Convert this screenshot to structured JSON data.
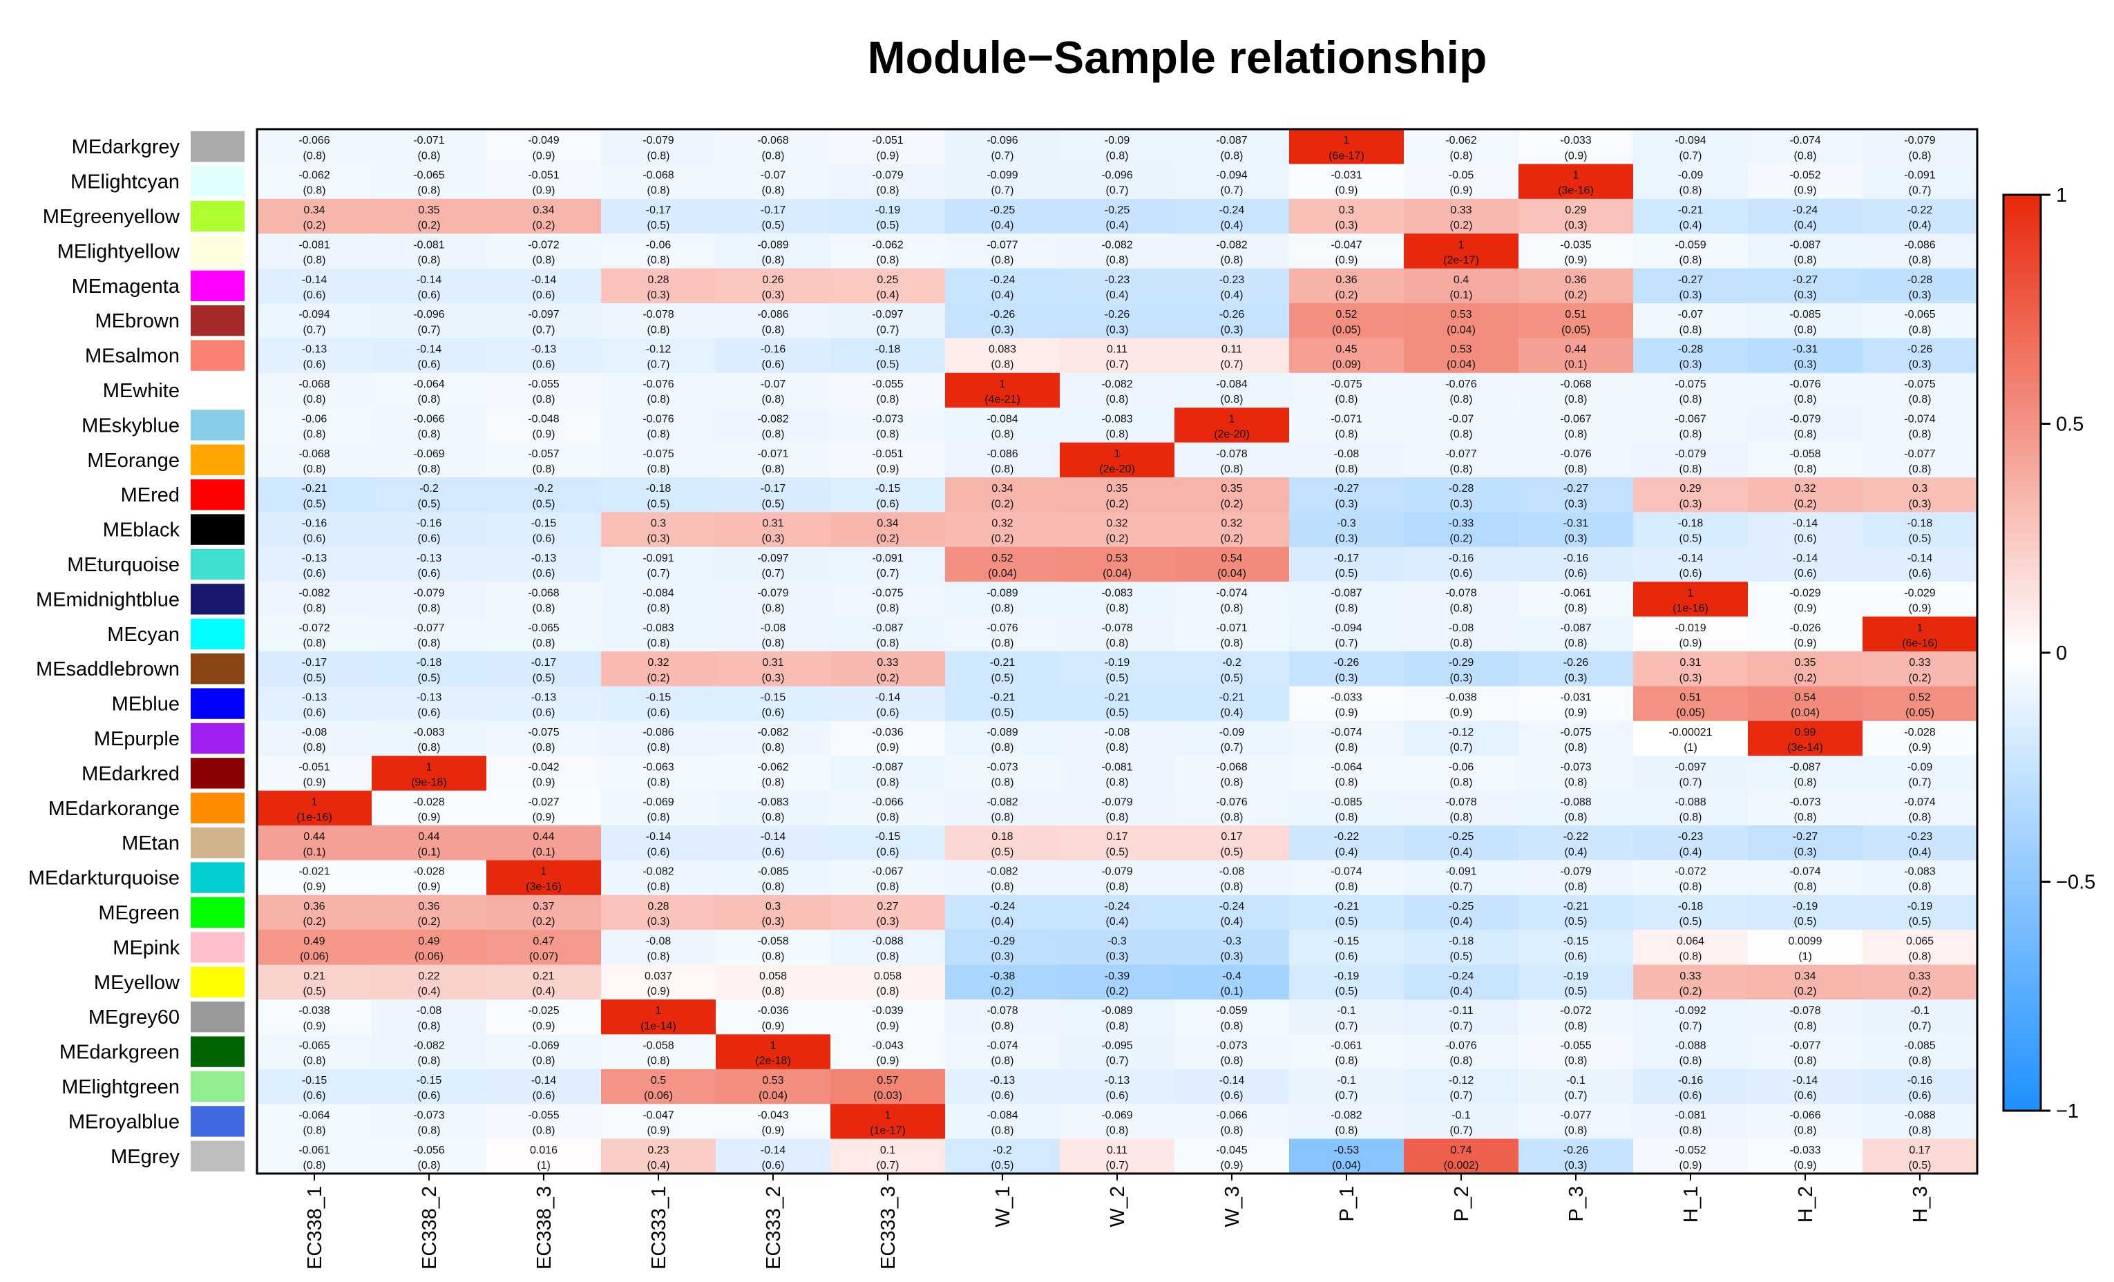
{
  "chart_data": {
    "type": "heatmap",
    "title": "Module−Sample relationship",
    "columns": [
      "EC338_1",
      "EC338_2",
      "EC338_3",
      "EC333_1",
      "EC333_2",
      "EC333_3",
      "W_1",
      "W_2",
      "W_3",
      "P_1",
      "P_2",
      "P_3",
      "H_1",
      "H_2",
      "H_3"
    ],
    "rows": [
      "MEdarkgrey",
      "MElightcyan",
      "MEgreenyellow",
      "MElightyellow",
      "MEmagenta",
      "MEbrown",
      "MEsalmon",
      "MEwhite",
      "MEskyblue",
      "MEorange",
      "MEred",
      "MEblack",
      "MEturquoise",
      "MEmidnightblue",
      "MEcyan",
      "MEsaddlebrown",
      "MEblue",
      "MEpurple",
      "MEdarkred",
      "MEdarkorange",
      "MEtan",
      "MEdarkturquoise",
      "MEgreen",
      "MEpink",
      "MEyellow",
      "MEgrey60",
      "MEdarkgreen",
      "MElightgreen",
      "MEroyalblue",
      "MEgrey"
    ],
    "row_colors": [
      "#a9a9a9",
      "#e0ffff",
      "#adff2f",
      "#ffffe0",
      "#ff00ff",
      "#a52a2a",
      "#fa8072",
      "#ffffff",
      "#87ceeb",
      "#ffa500",
      "#ff0000",
      "#000000",
      "#40e0d0",
      "#191970",
      "#00ffff",
      "#8b4513",
      "#0000ff",
      "#a020f0",
      "#8b0000",
      "#ff8c00",
      "#d2b48c",
      "#00ced1",
      "#00ff00",
      "#ffc0cb",
      "#ffff00",
      "#999999",
      "#006400",
      "#90ee90",
      "#4169e1",
      "#bebebe"
    ],
    "values": [
      [
        "-0.066",
        "-0.071",
        "-0.049",
        "-0.079",
        "-0.068",
        "-0.051",
        "-0.096",
        "-0.09",
        "-0.087",
        "1",
        "-0.062",
        "-0.033",
        "-0.094",
        "-0.074",
        "-0.079"
      ],
      [
        "-0.062",
        "-0.065",
        "-0.051",
        "-0.068",
        "-0.07",
        "-0.079",
        "-0.099",
        "-0.096",
        "-0.094",
        "-0.031",
        "-0.05",
        "1",
        "-0.09",
        "-0.052",
        "-0.091"
      ],
      [
        "0.34",
        "0.35",
        "0.34",
        "-0.17",
        "-0.17",
        "-0.19",
        "-0.25",
        "-0.25",
        "-0.24",
        "0.3",
        "0.33",
        "0.29",
        "-0.21",
        "-0.24",
        "-0.22"
      ],
      [
        "-0.081",
        "-0.081",
        "-0.072",
        "-0.06",
        "-0.089",
        "-0.062",
        "-0.077",
        "-0.082",
        "-0.082",
        "-0.047",
        "1",
        "-0.035",
        "-0.059",
        "-0.087",
        "-0.086"
      ],
      [
        "-0.14",
        "-0.14",
        "-0.14",
        "0.28",
        "0.26",
        "0.25",
        "-0.24",
        "-0.23",
        "-0.23",
        "0.36",
        "0.4",
        "0.36",
        "-0.27",
        "-0.27",
        "-0.28"
      ],
      [
        "-0.094",
        "-0.096",
        "-0.097",
        "-0.078",
        "-0.086",
        "-0.097",
        "-0.26",
        "-0.26",
        "-0.26",
        "0.52",
        "0.53",
        "0.51",
        "-0.07",
        "-0.085",
        "-0.065"
      ],
      [
        "-0.13",
        "-0.14",
        "-0.13",
        "-0.12",
        "-0.16",
        "-0.18",
        "0.083",
        "0.11",
        "0.11",
        "0.45",
        "0.53",
        "0.44",
        "-0.28",
        "-0.31",
        "-0.26"
      ],
      [
        "-0.068",
        "-0.064",
        "-0.055",
        "-0.076",
        "-0.07",
        "-0.055",
        "1",
        "-0.082",
        "-0.084",
        "-0.075",
        "-0.076",
        "-0.068",
        "-0.075",
        "-0.076",
        "-0.075"
      ],
      [
        "-0.06",
        "-0.066",
        "-0.048",
        "-0.076",
        "-0.082",
        "-0.073",
        "-0.084",
        "-0.083",
        "1",
        "-0.071",
        "-0.07",
        "-0.067",
        "-0.067",
        "-0.079",
        "-0.074"
      ],
      [
        "-0.068",
        "-0.069",
        "-0.057",
        "-0.075",
        "-0.071",
        "-0.051",
        "-0.086",
        "1",
        "-0.078",
        "-0.08",
        "-0.077",
        "-0.076",
        "-0.079",
        "-0.058",
        "-0.077"
      ],
      [
        "-0.21",
        "-0.2",
        "-0.2",
        "-0.18",
        "-0.17",
        "-0.15",
        "0.34",
        "0.35",
        "0.35",
        "-0.27",
        "-0.28",
        "-0.27",
        "0.29",
        "0.32",
        "0.3"
      ],
      [
        "-0.16",
        "-0.16",
        "-0.15",
        "0.3",
        "0.31",
        "0.34",
        "0.32",
        "0.32",
        "0.32",
        "-0.3",
        "-0.33",
        "-0.31",
        "-0.18",
        "-0.14",
        "-0.18"
      ],
      [
        "-0.13",
        "-0.13",
        "-0.13",
        "-0.091",
        "-0.097",
        "-0.091",
        "0.52",
        "0.53",
        "0.54",
        "-0.17",
        "-0.16",
        "-0.16",
        "-0.14",
        "-0.14",
        "-0.14"
      ],
      [
        "-0.082",
        "-0.079",
        "-0.068",
        "-0.084",
        "-0.079",
        "-0.075",
        "-0.089",
        "-0.083",
        "-0.074",
        "-0.087",
        "-0.078",
        "-0.061",
        "1",
        "-0.029",
        "-0.029"
      ],
      [
        "-0.072",
        "-0.077",
        "-0.065",
        "-0.083",
        "-0.08",
        "-0.087",
        "-0.076",
        "-0.078",
        "-0.071",
        "-0.094",
        "-0.08",
        "-0.087",
        "-0.019",
        "-0.026",
        "1"
      ],
      [
        "-0.17",
        "-0.18",
        "-0.17",
        "0.32",
        "0.31",
        "0.33",
        "-0.21",
        "-0.19",
        "-0.2",
        "-0.26",
        "-0.29",
        "-0.26",
        "0.31",
        "0.35",
        "0.33"
      ],
      [
        "-0.13",
        "-0.13",
        "-0.13",
        "-0.15",
        "-0.15",
        "-0.14",
        "-0.21",
        "-0.21",
        "-0.21",
        "-0.033",
        "-0.038",
        "-0.031",
        "0.51",
        "0.54",
        "0.52"
      ],
      [
        "-0.08",
        "-0.083",
        "-0.075",
        "-0.086",
        "-0.082",
        "-0.036",
        "-0.089",
        "-0.08",
        "-0.09",
        "-0.074",
        "-0.12",
        "-0.075",
        "-0.00021",
        "0.99",
        "-0.028"
      ],
      [
        "-0.051",
        "1",
        "-0.042",
        "-0.063",
        "-0.062",
        "-0.087",
        "-0.073",
        "-0.081",
        "-0.068",
        "-0.064",
        "-0.06",
        "-0.073",
        "-0.097",
        "-0.087",
        "-0.09"
      ],
      [
        "1",
        "-0.028",
        "-0.027",
        "-0.069",
        "-0.083",
        "-0.066",
        "-0.082",
        "-0.079",
        "-0.076",
        "-0.085",
        "-0.078",
        "-0.088",
        "-0.088",
        "-0.073",
        "-0.074"
      ],
      [
        "0.44",
        "0.44",
        "0.44",
        "-0.14",
        "-0.14",
        "-0.15",
        "0.18",
        "0.17",
        "0.17",
        "-0.22",
        "-0.25",
        "-0.22",
        "-0.23",
        "-0.27",
        "-0.23"
      ],
      [
        "-0.021",
        "-0.028",
        "1",
        "-0.082",
        "-0.085",
        "-0.067",
        "-0.082",
        "-0.079",
        "-0.08",
        "-0.074",
        "-0.091",
        "-0.079",
        "-0.072",
        "-0.074",
        "-0.083"
      ],
      [
        "0.36",
        "0.36",
        "0.37",
        "0.28",
        "0.3",
        "0.27",
        "-0.24",
        "-0.24",
        "-0.24",
        "-0.21",
        "-0.25",
        "-0.21",
        "-0.18",
        "-0.19",
        "-0.19"
      ],
      [
        "0.49",
        "0.49",
        "0.47",
        "-0.08",
        "-0.058",
        "-0.088",
        "-0.29",
        "-0.3",
        "-0.3",
        "-0.15",
        "-0.18",
        "-0.15",
        "0.064",
        "0.0099",
        "0.065"
      ],
      [
        "0.21",
        "0.22",
        "0.21",
        "0.037",
        "0.058",
        "0.058",
        "-0.38",
        "-0.39",
        "-0.4",
        "-0.19",
        "-0.24",
        "-0.19",
        "0.33",
        "0.34",
        "0.33"
      ],
      [
        "-0.038",
        "-0.08",
        "-0.025",
        "1",
        "-0.036",
        "-0.039",
        "-0.078",
        "-0.089",
        "-0.059",
        "-0.1",
        "-0.11",
        "-0.072",
        "-0.092",
        "-0.078",
        "-0.1"
      ],
      [
        "-0.065",
        "-0.082",
        "-0.069",
        "-0.058",
        "1",
        "-0.043",
        "-0.074",
        "-0.095",
        "-0.073",
        "-0.061",
        "-0.076",
        "-0.055",
        "-0.088",
        "-0.077",
        "-0.085"
      ],
      [
        "-0.15",
        "-0.15",
        "-0.14",
        "0.5",
        "0.53",
        "0.57",
        "-0.13",
        "-0.13",
        "-0.14",
        "-0.1",
        "-0.12",
        "-0.1",
        "-0.16",
        "-0.14",
        "-0.16"
      ],
      [
        "-0.064",
        "-0.073",
        "-0.055",
        "-0.047",
        "-0.043",
        "1",
        "-0.084",
        "-0.069",
        "-0.066",
        "-0.082",
        "-0.1",
        "-0.077",
        "-0.081",
        "-0.066",
        "-0.088"
      ],
      [
        "-0.061",
        "-0.056",
        "0.016",
        "0.23",
        "-0.14",
        "0.1",
        "-0.2",
        "0.11",
        "-0.045",
        "-0.53",
        "0.74",
        "-0.26",
        "-0.052",
        "-0.033",
        "0.17"
      ]
    ],
    "pvalues": [
      [
        "(0.8)",
        "(0.8)",
        "(0.9)",
        "(0.8)",
        "(0.8)",
        "(0.9)",
        "(0.7)",
        "(0.8)",
        "(0.8)",
        "(6e-17)",
        "(0.8)",
        "(0.9)",
        "(0.7)",
        "(0.8)",
        "(0.8)"
      ],
      [
        "(0.8)",
        "(0.8)",
        "(0.9)",
        "(0.8)",
        "(0.8)",
        "(0.8)",
        "(0.7)",
        "(0.7)",
        "(0.7)",
        "(0.9)",
        "(0.9)",
        "(3e-16)",
        "(0.8)",
        "(0.9)",
        "(0.7)"
      ],
      [
        "(0.2)",
        "(0.2)",
        "(0.2)",
        "(0.5)",
        "(0.5)",
        "(0.5)",
        "(0.4)",
        "(0.4)",
        "(0.4)",
        "(0.3)",
        "(0.2)",
        "(0.3)",
        "(0.4)",
        "(0.4)",
        "(0.4)"
      ],
      [
        "(0.8)",
        "(0.8)",
        "(0.8)",
        "(0.8)",
        "(0.8)",
        "(0.8)",
        "(0.8)",
        "(0.8)",
        "(0.8)",
        "(0.9)",
        "(2e-17)",
        "(0.9)",
        "(0.8)",
        "(0.8)",
        "(0.8)"
      ],
      [
        "(0.6)",
        "(0.6)",
        "(0.6)",
        "(0.3)",
        "(0.3)",
        "(0.4)",
        "(0.4)",
        "(0.4)",
        "(0.4)",
        "(0.2)",
        "(0.1)",
        "(0.2)",
        "(0.3)",
        "(0.3)",
        "(0.3)"
      ],
      [
        "(0.7)",
        "(0.7)",
        "(0.7)",
        "(0.8)",
        "(0.8)",
        "(0.7)",
        "(0.3)",
        "(0.3)",
        "(0.3)",
        "(0.05)",
        "(0.04)",
        "(0.05)",
        "(0.8)",
        "(0.8)",
        "(0.8)"
      ],
      [
        "(0.6)",
        "(0.6)",
        "(0.6)",
        "(0.7)",
        "(0.6)",
        "(0.5)",
        "(0.8)",
        "(0.7)",
        "(0.7)",
        "(0.09)",
        "(0.04)",
        "(0.1)",
        "(0.3)",
        "(0.3)",
        "(0.3)"
      ],
      [
        "(0.8)",
        "(0.8)",
        "(0.8)",
        "(0.8)",
        "(0.8)",
        "(0.8)",
        "(4e-21)",
        "(0.8)",
        "(0.8)",
        "(0.8)",
        "(0.8)",
        "(0.8)",
        "(0.8)",
        "(0.8)",
        "(0.8)"
      ],
      [
        "(0.8)",
        "(0.8)",
        "(0.9)",
        "(0.8)",
        "(0.8)",
        "(0.8)",
        "(0.8)",
        "(0.8)",
        "(2e-20)",
        "(0.8)",
        "(0.8)",
        "(0.8)",
        "(0.8)",
        "(0.8)",
        "(0.8)"
      ],
      [
        "(0.8)",
        "(0.8)",
        "(0.8)",
        "(0.8)",
        "(0.8)",
        "(0.9)",
        "(0.8)",
        "(2e-20)",
        "(0.8)",
        "(0.8)",
        "(0.8)",
        "(0.8)",
        "(0.8)",
        "(0.8)",
        "(0.8)"
      ],
      [
        "(0.5)",
        "(0.5)",
        "(0.5)",
        "(0.5)",
        "(0.5)",
        "(0.6)",
        "(0.2)",
        "(0.2)",
        "(0.2)",
        "(0.3)",
        "(0.3)",
        "(0.3)",
        "(0.3)",
        "(0.2)",
        "(0.3)"
      ],
      [
        "(0.6)",
        "(0.6)",
        "(0.6)",
        "(0.3)",
        "(0.3)",
        "(0.2)",
        "(0.2)",
        "(0.2)",
        "(0.2)",
        "(0.3)",
        "(0.2)",
        "(0.3)",
        "(0.5)",
        "(0.6)",
        "(0.5)"
      ],
      [
        "(0.6)",
        "(0.6)",
        "(0.6)",
        "(0.7)",
        "(0.7)",
        "(0.7)",
        "(0.04)",
        "(0.04)",
        "(0.04)",
        "(0.5)",
        "(0.6)",
        "(0.6)",
        "(0.6)",
        "(0.6)",
        "(0.6)"
      ],
      [
        "(0.8)",
        "(0.8)",
        "(0.8)",
        "(0.8)",
        "(0.8)",
        "(0.8)",
        "(0.8)",
        "(0.8)",
        "(0.8)",
        "(0.8)",
        "(0.8)",
        "(0.8)",
        "(1e-16)",
        "(0.9)",
        "(0.9)"
      ],
      [
        "(0.8)",
        "(0.8)",
        "(0.8)",
        "(0.8)",
        "(0.8)",
        "(0.8)",
        "(0.8)",
        "(0.8)",
        "(0.8)",
        "(0.7)",
        "(0.8)",
        "(0.8)",
        "(0.9)",
        "(0.9)",
        "(6e-16)"
      ],
      [
        "(0.5)",
        "(0.5)",
        "(0.5)",
        "(0.2)",
        "(0.3)",
        "(0.2)",
        "(0.5)",
        "(0.5)",
        "(0.5)",
        "(0.3)",
        "(0.3)",
        "(0.3)",
        "(0.3)",
        "(0.2)",
        "(0.2)"
      ],
      [
        "(0.6)",
        "(0.6)",
        "(0.6)",
        "(0.6)",
        "(0.6)",
        "(0.6)",
        "(0.5)",
        "(0.5)",
        "(0.4)",
        "(0.9)",
        "(0.9)",
        "(0.9)",
        "(0.05)",
        "(0.04)",
        "(0.05)"
      ],
      [
        "(0.8)",
        "(0.8)",
        "(0.8)",
        "(0.8)",
        "(0.8)",
        "(0.9)",
        "(0.8)",
        "(0.8)",
        "(0.7)",
        "(0.8)",
        "(0.7)",
        "(0.8)",
        "(1)",
        "(3e-14)",
        "(0.9)"
      ],
      [
        "(0.9)",
        "(9e-18)",
        "(0.9)",
        "(0.8)",
        "(0.8)",
        "(0.8)",
        "(0.8)",
        "(0.8)",
        "(0.8)",
        "(0.8)",
        "(0.8)",
        "(0.8)",
        "(0.7)",
        "(0.8)",
        "(0.7)"
      ],
      [
        "(1e-16)",
        "(0.9)",
        "(0.9)",
        "(0.8)",
        "(0.8)",
        "(0.8)",
        "(0.8)",
        "(0.8)",
        "(0.8)",
        "(0.8)",
        "(0.8)",
        "(0.8)",
        "(0.8)",
        "(0.8)",
        "(0.8)"
      ],
      [
        "(0.1)",
        "(0.1)",
        "(0.1)",
        "(0.6)",
        "(0.6)",
        "(0.6)",
        "(0.5)",
        "(0.5)",
        "(0.5)",
        "(0.4)",
        "(0.4)",
        "(0.4)",
        "(0.4)",
        "(0.3)",
        "(0.4)"
      ],
      [
        "(0.9)",
        "(0.9)",
        "(3e-16)",
        "(0.8)",
        "(0.8)",
        "(0.8)",
        "(0.8)",
        "(0.8)",
        "(0.8)",
        "(0.8)",
        "(0.7)",
        "(0.8)",
        "(0.8)",
        "(0.8)",
        "(0.8)"
      ],
      [
        "(0.2)",
        "(0.2)",
        "(0.2)",
        "(0.3)",
        "(0.3)",
        "(0.3)",
        "(0.4)",
        "(0.4)",
        "(0.4)",
        "(0.5)",
        "(0.4)",
        "(0.5)",
        "(0.5)",
        "(0.5)",
        "(0.5)"
      ],
      [
        "(0.06)",
        "(0.06)",
        "(0.07)",
        "(0.8)",
        "(0.8)",
        "(0.8)",
        "(0.3)",
        "(0.3)",
        "(0.3)",
        "(0.6)",
        "(0.5)",
        "(0.6)",
        "(0.8)",
        "(1)",
        "(0.8)"
      ],
      [
        "(0.5)",
        "(0.4)",
        "(0.4)",
        "(0.9)",
        "(0.8)",
        "(0.8)",
        "(0.2)",
        "(0.2)",
        "(0.1)",
        "(0.5)",
        "(0.4)",
        "(0.5)",
        "(0.2)",
        "(0.2)",
        "(0.2)"
      ],
      [
        "(0.9)",
        "(0.8)",
        "(0.9)",
        "(1e-14)",
        "(0.9)",
        "(0.9)",
        "(0.8)",
        "(0.8)",
        "(0.8)",
        "(0.7)",
        "(0.7)",
        "(0.8)",
        "(0.7)",
        "(0.8)",
        "(0.7)"
      ],
      [
        "(0.8)",
        "(0.8)",
        "(0.8)",
        "(0.8)",
        "(2e-18)",
        "(0.9)",
        "(0.8)",
        "(0.7)",
        "(0.8)",
        "(0.8)",
        "(0.8)",
        "(0.8)",
        "(0.8)",
        "(0.8)",
        "(0.8)"
      ],
      [
        "(0.6)",
        "(0.6)",
        "(0.6)",
        "(0.06)",
        "(0.04)",
        "(0.03)",
        "(0.6)",
        "(0.6)",
        "(0.6)",
        "(0.7)",
        "(0.7)",
        "(0.7)",
        "(0.6)",
        "(0.6)",
        "(0.6)"
      ],
      [
        "(0.8)",
        "(0.8)",
        "(0.8)",
        "(0.9)",
        "(0.9)",
        "(1e-17)",
        "(0.8)",
        "(0.8)",
        "(0.8)",
        "(0.8)",
        "(0.7)",
        "(0.8)",
        "(0.8)",
        "(0.8)",
        "(0.8)"
      ],
      [
        "(0.8)",
        "(0.8)",
        "(1)",
        "(0.4)",
        "(0.6)",
        "(0.7)",
        "(0.5)",
        "(0.7)",
        "(0.9)",
        "(0.04)",
        "(0.002)",
        "(0.3)",
        "(0.9)",
        "(0.9)",
        "(0.5)"
      ]
    ],
    "colorbar": {
      "range": [
        -1,
        1
      ],
      "ticks": [
        "1",
        "0.5",
        "0",
        "−0.5",
        "−1"
      ],
      "tick_values": [
        1,
        0.5,
        0,
        -0.5,
        -1
      ],
      "low_color": "#1e90ff",
      "mid_color": "#ffffff",
      "high_color": "#e8280c"
    }
  }
}
